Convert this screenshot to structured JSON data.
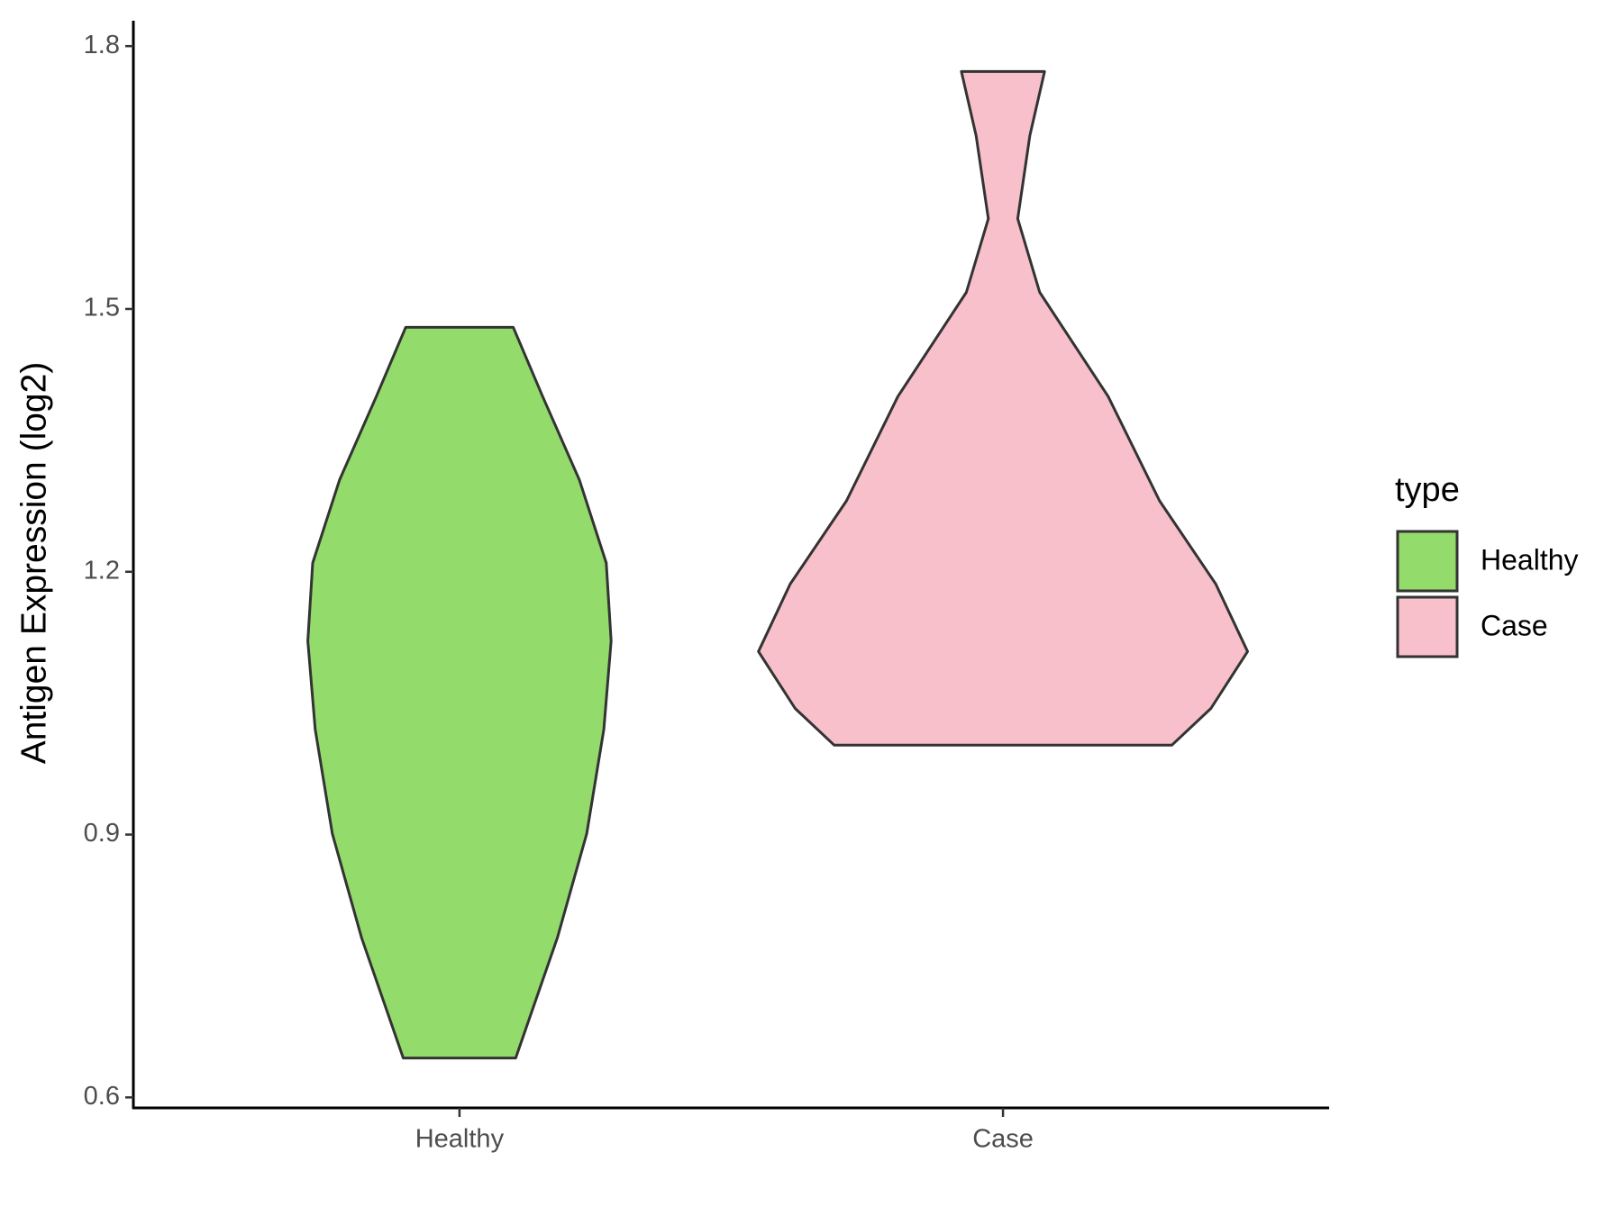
{
  "chart_data": {
    "type": "violin",
    "y_label": "Antigen Expression (log2)",
    "categories": [
      "Healthy",
      "Case"
    ],
    "legend_title": "type",
    "legend": "right",
    "series": [
      {
        "name": "Healthy",
        "color": "#93db6b",
        "y": [
          0.645,
          0.782,
          0.901,
          1.02,
          1.121,
          1.21,
          1.305,
          1.4,
          1.479
        ],
        "density": [
          0.23,
          0.4,
          0.52,
          0.59,
          0.62,
          0.6,
          0.49,
          0.34,
          0.22
        ]
      },
      {
        "name": "Case",
        "color": "#f8c0cb",
        "y": [
          1.002,
          1.044,
          1.109,
          1.186,
          1.281,
          1.4,
          1.519,
          1.603,
          1.698,
          1.771
        ],
        "density": [
          0.69,
          0.85,
          1,
          0.87,
          0.64,
          0.43,
          0.15,
          0.06,
          0.11,
          0.17
        ]
      }
    ],
    "ylim": [
      0.588,
      1.829
    ],
    "yticks": [
      0.6,
      0.9,
      1.2,
      1.5,
      1.8
    ]
  }
}
